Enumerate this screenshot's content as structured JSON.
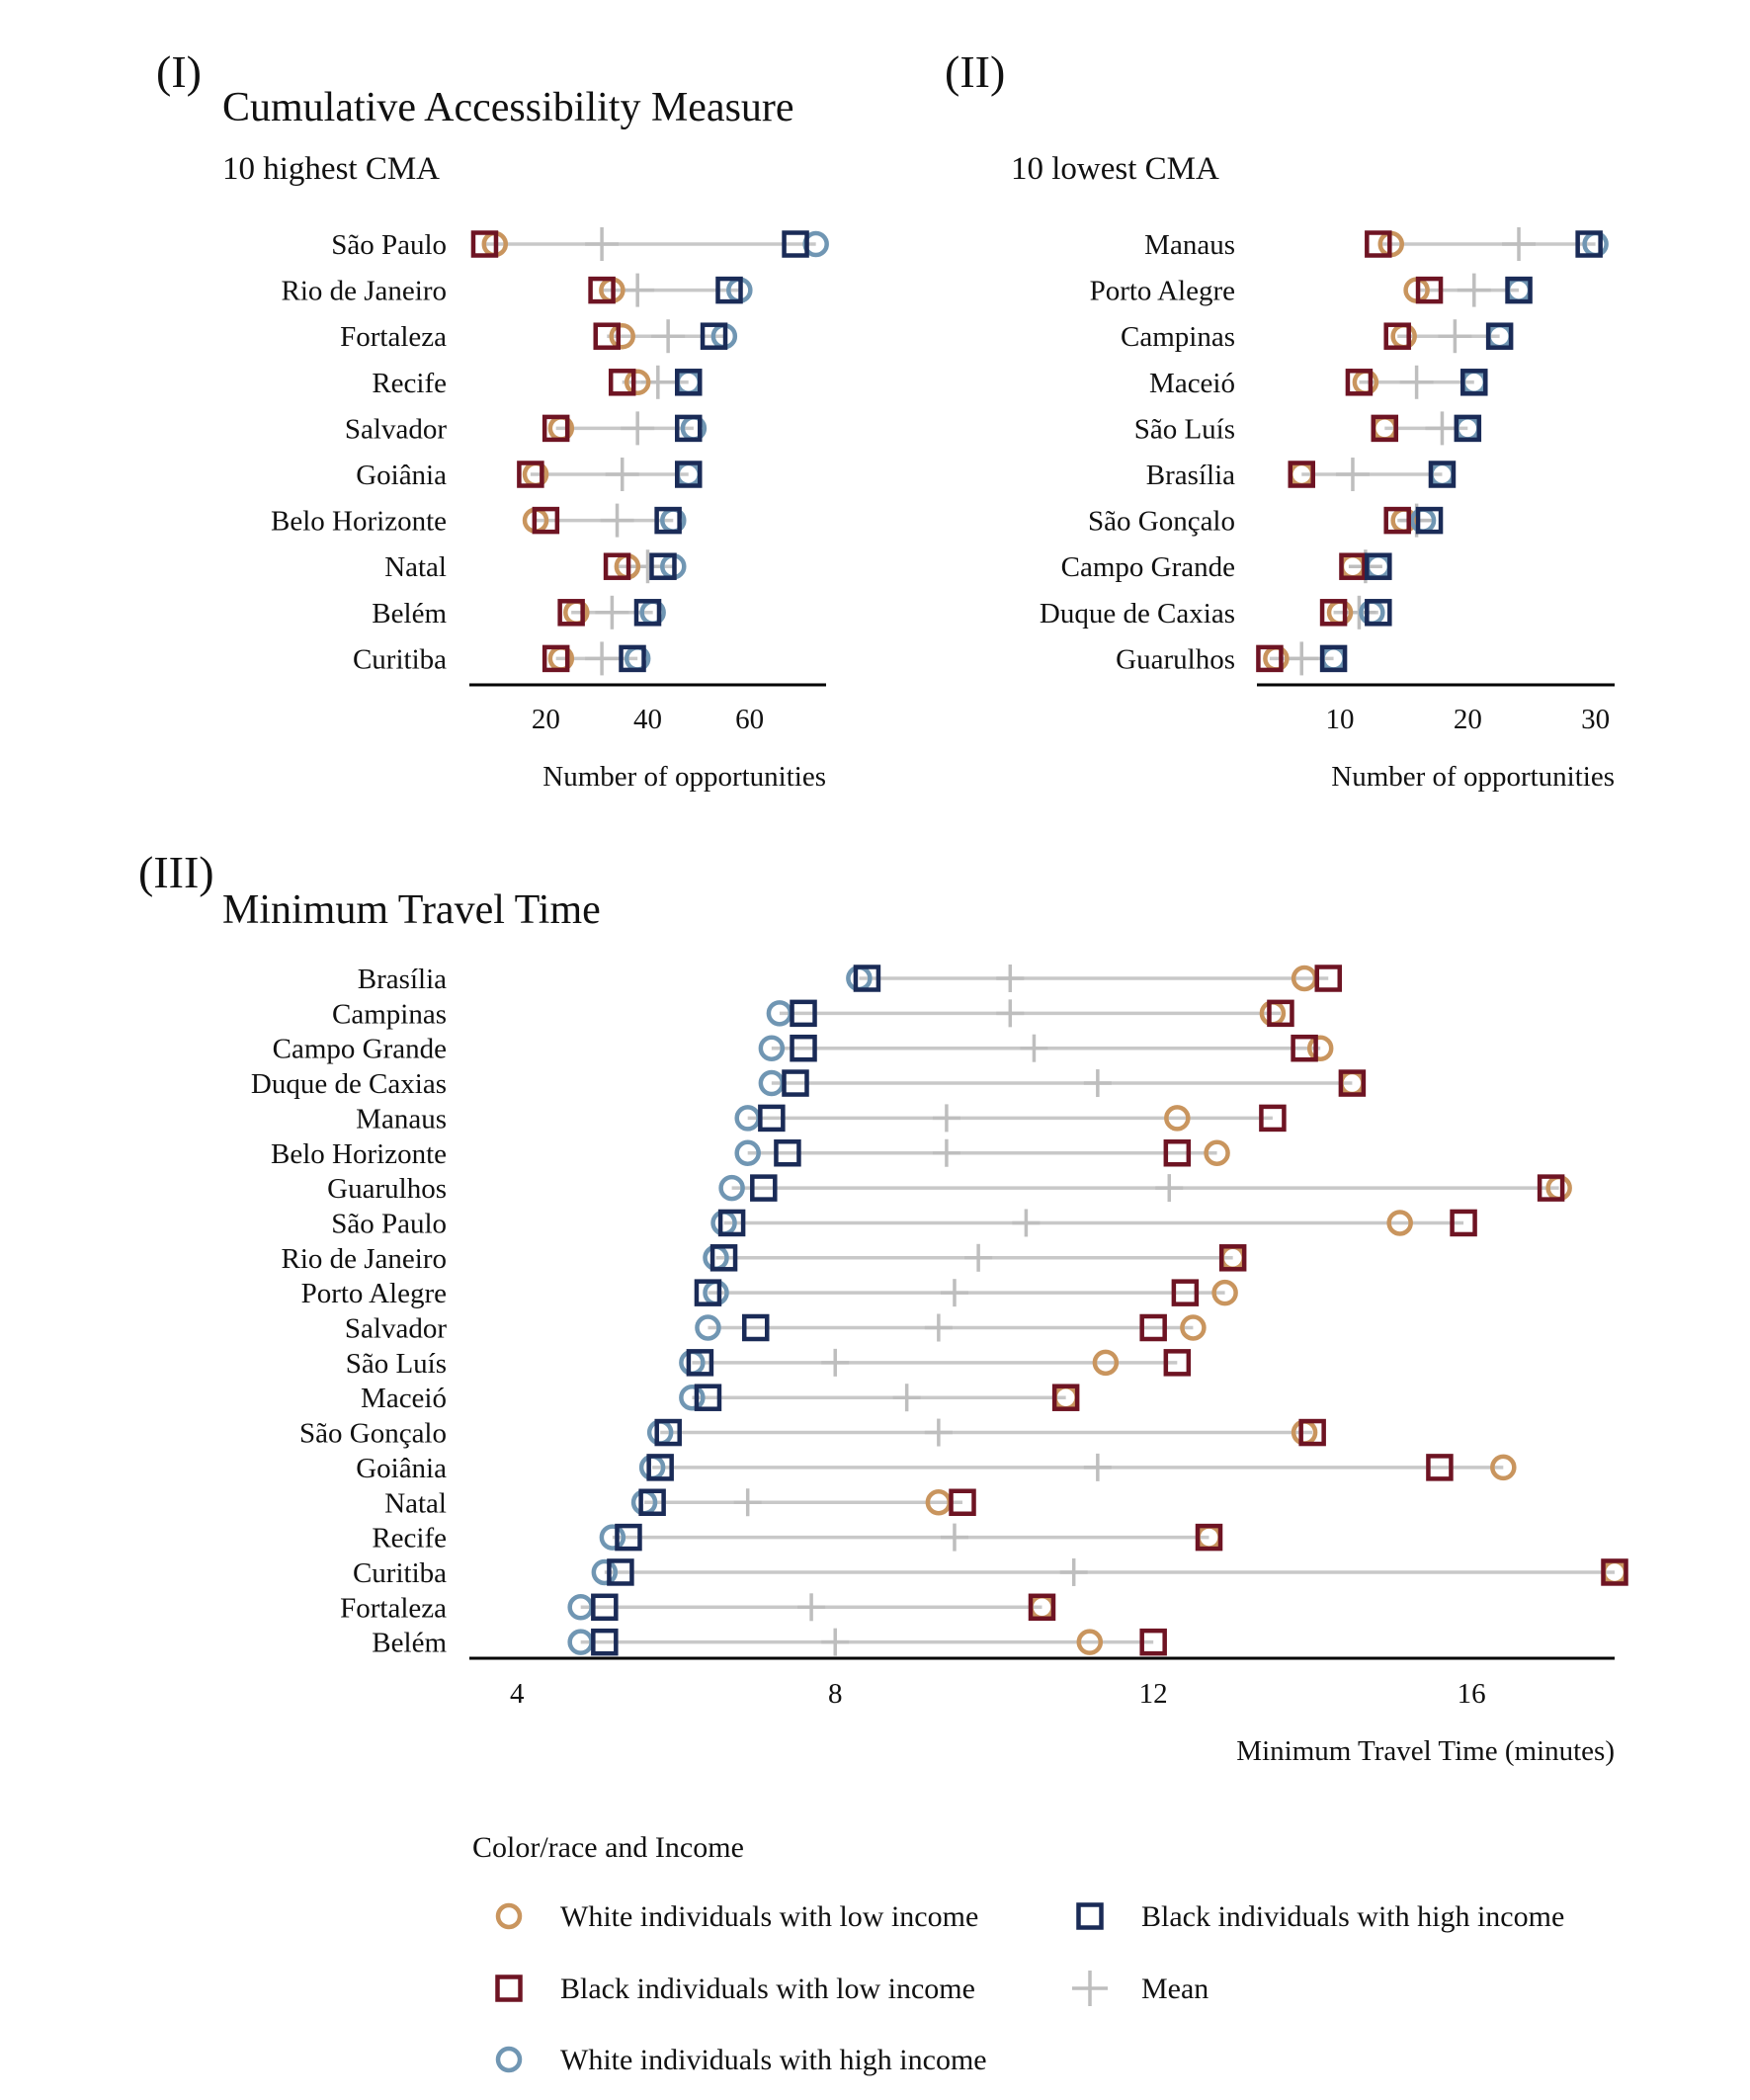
{
  "figure": {
    "panel_labels": [
      "(I)",
      "(II)",
      "(III)"
    ]
  },
  "colors": {
    "white_low": "#C9955E",
    "black_low": "#6E1423",
    "white_high": "#7096B3",
    "black_high": "#1A2B57",
    "mean": "#BEBEBE",
    "range_line": "#C8C8C8"
  },
  "legend": {
    "title": "Color/race and Income",
    "items": [
      {
        "key": "white_low",
        "label": "White individuals with low income",
        "shape": "circle"
      },
      {
        "key": "black_high",
        "label": "Black individuals with high income",
        "shape": "square"
      },
      {
        "key": "black_low",
        "label": "Black individuals with low income",
        "shape": "square"
      },
      {
        "key": "mean",
        "label": "Mean",
        "shape": "cross"
      },
      {
        "key": "white_high",
        "label": "White individuals with high income",
        "shape": "circle"
      }
    ]
  },
  "chart_data": [
    {
      "type": "dot-range",
      "panel": "(I)",
      "title": "Cumulative Accessibility Measure",
      "subtitle": "10 highest CMA",
      "xlabel": "Number of opportunities",
      "xlim": [
        5,
        75
      ],
      "xticks": [
        20,
        40,
        60
      ],
      "grid": false,
      "categories": [
        "São Paulo",
        "Rio de Janeiro",
        "Fortaleza",
        "Recife",
        "Salvador",
        "Goiânia",
        "Belo Horizonte",
        "Natal",
        "Belém",
        "Curitiba"
      ],
      "series": [
        {
          "name": "White individuals with low income",
          "key": "white_low",
          "values": [
            10,
            33,
            35,
            38,
            23,
            18,
            18,
            36,
            26,
            23
          ]
        },
        {
          "name": "Black individuals with low income",
          "key": "black_low",
          "values": [
            8,
            31,
            32,
            35,
            22,
            17,
            20,
            34,
            25,
            22
          ]
        },
        {
          "name": "White individuals with high income",
          "key": "white_high",
          "values": [
            73,
            58,
            55,
            48,
            49,
            48,
            45,
            45,
            41,
            38
          ]
        },
        {
          "name": "Black individuals with high income",
          "key": "black_high",
          "values": [
            69,
            56,
            53,
            48,
            48,
            48,
            44,
            43,
            40,
            37
          ]
        },
        {
          "name": "Mean",
          "key": "mean",
          "values": [
            31,
            38,
            44,
            42,
            38,
            35,
            34,
            40,
            33,
            31
          ]
        }
      ]
    },
    {
      "type": "dot-range",
      "panel": "(II)",
      "title": "",
      "subtitle": "10 lowest CMA",
      "xlabel": "Number of opportunities",
      "xlim": [
        3.5,
        31.5
      ],
      "xticks": [
        10,
        20,
        30
      ],
      "grid": false,
      "categories": [
        "Manaus",
        "Porto Alegre",
        "Campinas",
        "Maceió",
        "São Luís",
        "Brasília",
        "São Gonçalo",
        "Campo Grande",
        "Duque de Caxias",
        "Guarulhos"
      ],
      "series": [
        {
          "name": "White individuals with low income",
          "key": "white_low",
          "values": [
            14,
            16,
            15,
            12,
            13.5,
            7,
            15,
            11,
            10,
            5
          ]
        },
        {
          "name": "Black individuals with low income",
          "key": "black_low",
          "values": [
            13,
            17,
            14.5,
            11.5,
            13.5,
            7,
            14.5,
            11,
            9.5,
            4.5
          ]
        },
        {
          "name": "White individuals with high income",
          "key": "white_high",
          "values": [
            30,
            24,
            22.5,
            20.5,
            20,
            18,
            16.5,
            13,
            12.5,
            9.5
          ]
        },
        {
          "name": "Black individuals with high income",
          "key": "black_high",
          "values": [
            29.5,
            24,
            22.5,
            20.5,
            20,
            18,
            17,
            13,
            13,
            9.5
          ]
        },
        {
          "name": "Mean",
          "key": "mean",
          "values": [
            24,
            20.5,
            19,
            16,
            18,
            11,
            16,
            12,
            11.5,
            7
          ]
        }
      ]
    },
    {
      "type": "dot-range",
      "panel": "(III)",
      "title": "Minimum Travel Time",
      "subtitle": "",
      "xlabel": "Minimum Travel Time (minutes)",
      "xlim": [
        3.4,
        17.8
      ],
      "xticks": [
        4,
        8,
        12,
        16
      ],
      "grid": false,
      "categories": [
        "Brasília",
        "Campinas",
        "Campo Grande",
        "Duque de Caxias",
        "Manaus",
        "Belo Horizonte",
        "Guarulhos",
        "São Paulo",
        "Rio de Janeiro",
        "Porto Alegre",
        "Salvador",
        "São Luís",
        "Maceió",
        "São Gonçalo",
        "Goiânia",
        "Natal",
        "Recife",
        "Curitiba",
        "Fortaleza",
        "Belém"
      ],
      "series": [
        {
          "name": "White individuals with low income",
          "key": "white_low",
          "values": [
            13.9,
            13.5,
            14.1,
            14.5,
            12.3,
            12.8,
            17.1,
            15.1,
            13.0,
            12.9,
            12.5,
            11.4,
            10.9,
            13.9,
            16.4,
            9.3,
            12.7,
            17.8,
            10.6,
            11.2
          ]
        },
        {
          "name": "Black individuals with low income",
          "key": "black_low",
          "values": [
            14.2,
            13.6,
            13.9,
            14.5,
            13.5,
            12.3,
            17.0,
            15.9,
            13.0,
            12.4,
            12.0,
            12.3,
            10.9,
            14.0,
            15.6,
            9.6,
            12.7,
            17.8,
            10.6,
            12.0
          ]
        },
        {
          "name": "White individuals with high income",
          "key": "white_high",
          "values": [
            8.3,
            7.3,
            7.2,
            7.2,
            6.9,
            6.9,
            6.7,
            6.6,
            6.5,
            6.5,
            6.4,
            6.2,
            6.2,
            5.8,
            5.7,
            5.6,
            5.2,
            5.1,
            4.8,
            4.8
          ]
        },
        {
          "name": "Black individuals with high income",
          "key": "black_high",
          "values": [
            8.4,
            7.6,
            7.6,
            7.5,
            7.2,
            7.4,
            7.1,
            6.7,
            6.6,
            6.4,
            7.0,
            6.3,
            6.4,
            5.9,
            5.8,
            5.7,
            5.4,
            5.3,
            5.1,
            5.1
          ]
        },
        {
          "name": "Mean",
          "key": "mean",
          "values": [
            10.2,
            10.2,
            10.5,
            11.3,
            9.4,
            9.4,
            12.2,
            10.4,
            9.8,
            9.5,
            9.3,
            8.0,
            8.9,
            9.3,
            11.3,
            6.9,
            9.5,
            11.0,
            7.7,
            8.0
          ]
        }
      ]
    }
  ]
}
